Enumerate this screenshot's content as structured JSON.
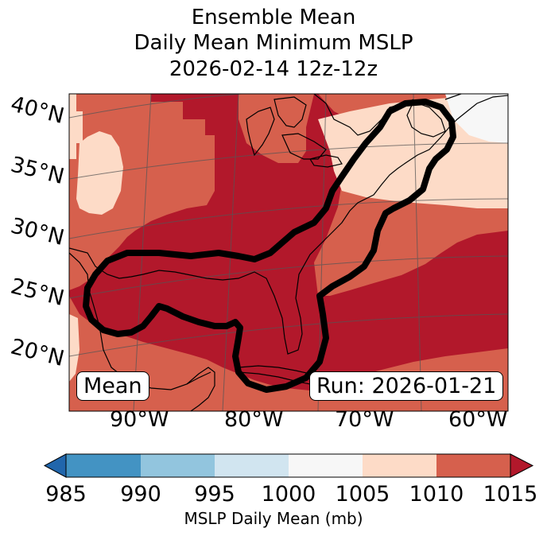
{
  "title": {
    "line1": "Ensemble Mean",
    "line2": "Daily Mean Minimum MSLP",
    "line3": "2026-02-14 12z-12z"
  },
  "map": {
    "lat_labels": [
      "40°N",
      "35°N",
      "30°N",
      "25°N",
      "20°N"
    ],
    "lon_labels": [
      "90°W",
      "80°W",
      "70°W",
      "60°W"
    ],
    "mean_label": "Mean",
    "run_label": "Run: 2026-01-21"
  },
  "colorbar": {
    "label": "MSLP Daily Mean (mb)",
    "ticks": [
      "985",
      "990",
      "995",
      "1000",
      "1005",
      "1010",
      "1015"
    ],
    "colors": [
      "#4393c3",
      "#92c5de",
      "#d1e5f0",
      "#f7f7f7",
      "#fddbc7",
      "#d6604d",
      "#b2182b",
      "#2166ac"
    ]
  },
  "palette": {
    "c1015": "#b2182b",
    "c1010": "#d6604d",
    "c1005": "#fddbc7",
    "c1000": "#f7f7f7"
  }
}
